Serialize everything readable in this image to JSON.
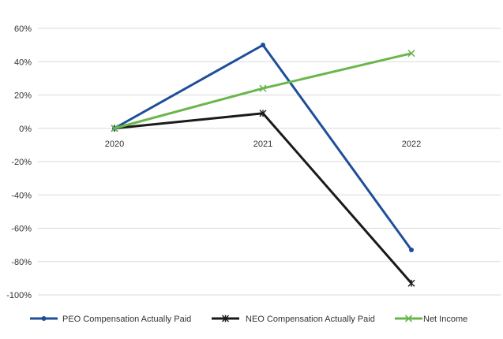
{
  "chart_data": {
    "type": "line",
    "categories": [
      "2020",
      "2021",
      "2022"
    ],
    "series": [
      {
        "name": "PEO Compensation Actually Paid",
        "values": [
          0,
          50,
          -73
        ],
        "color": "#1f4e99",
        "marker": "circle"
      },
      {
        "name": "NEO Compensation Actually Paid",
        "values": [
          0,
          9,
          -93
        ],
        "color": "#1a1a1a",
        "marker": "star"
      },
      {
        "name": "Net Income",
        "values": [
          0,
          24,
          45
        ],
        "color": "#6ab64c",
        "marker": "x"
      }
    ],
    "yticks": [
      "60%",
      "40%",
      "20%",
      "0%",
      "-20%",
      "-40%",
      "-60%",
      "-80%",
      "-100%"
    ],
    "ylim": [
      -100,
      60
    ],
    "grid": true,
    "legend_position": "bottom",
    "title": "",
    "xlabel": "",
    "ylabel": ""
  }
}
